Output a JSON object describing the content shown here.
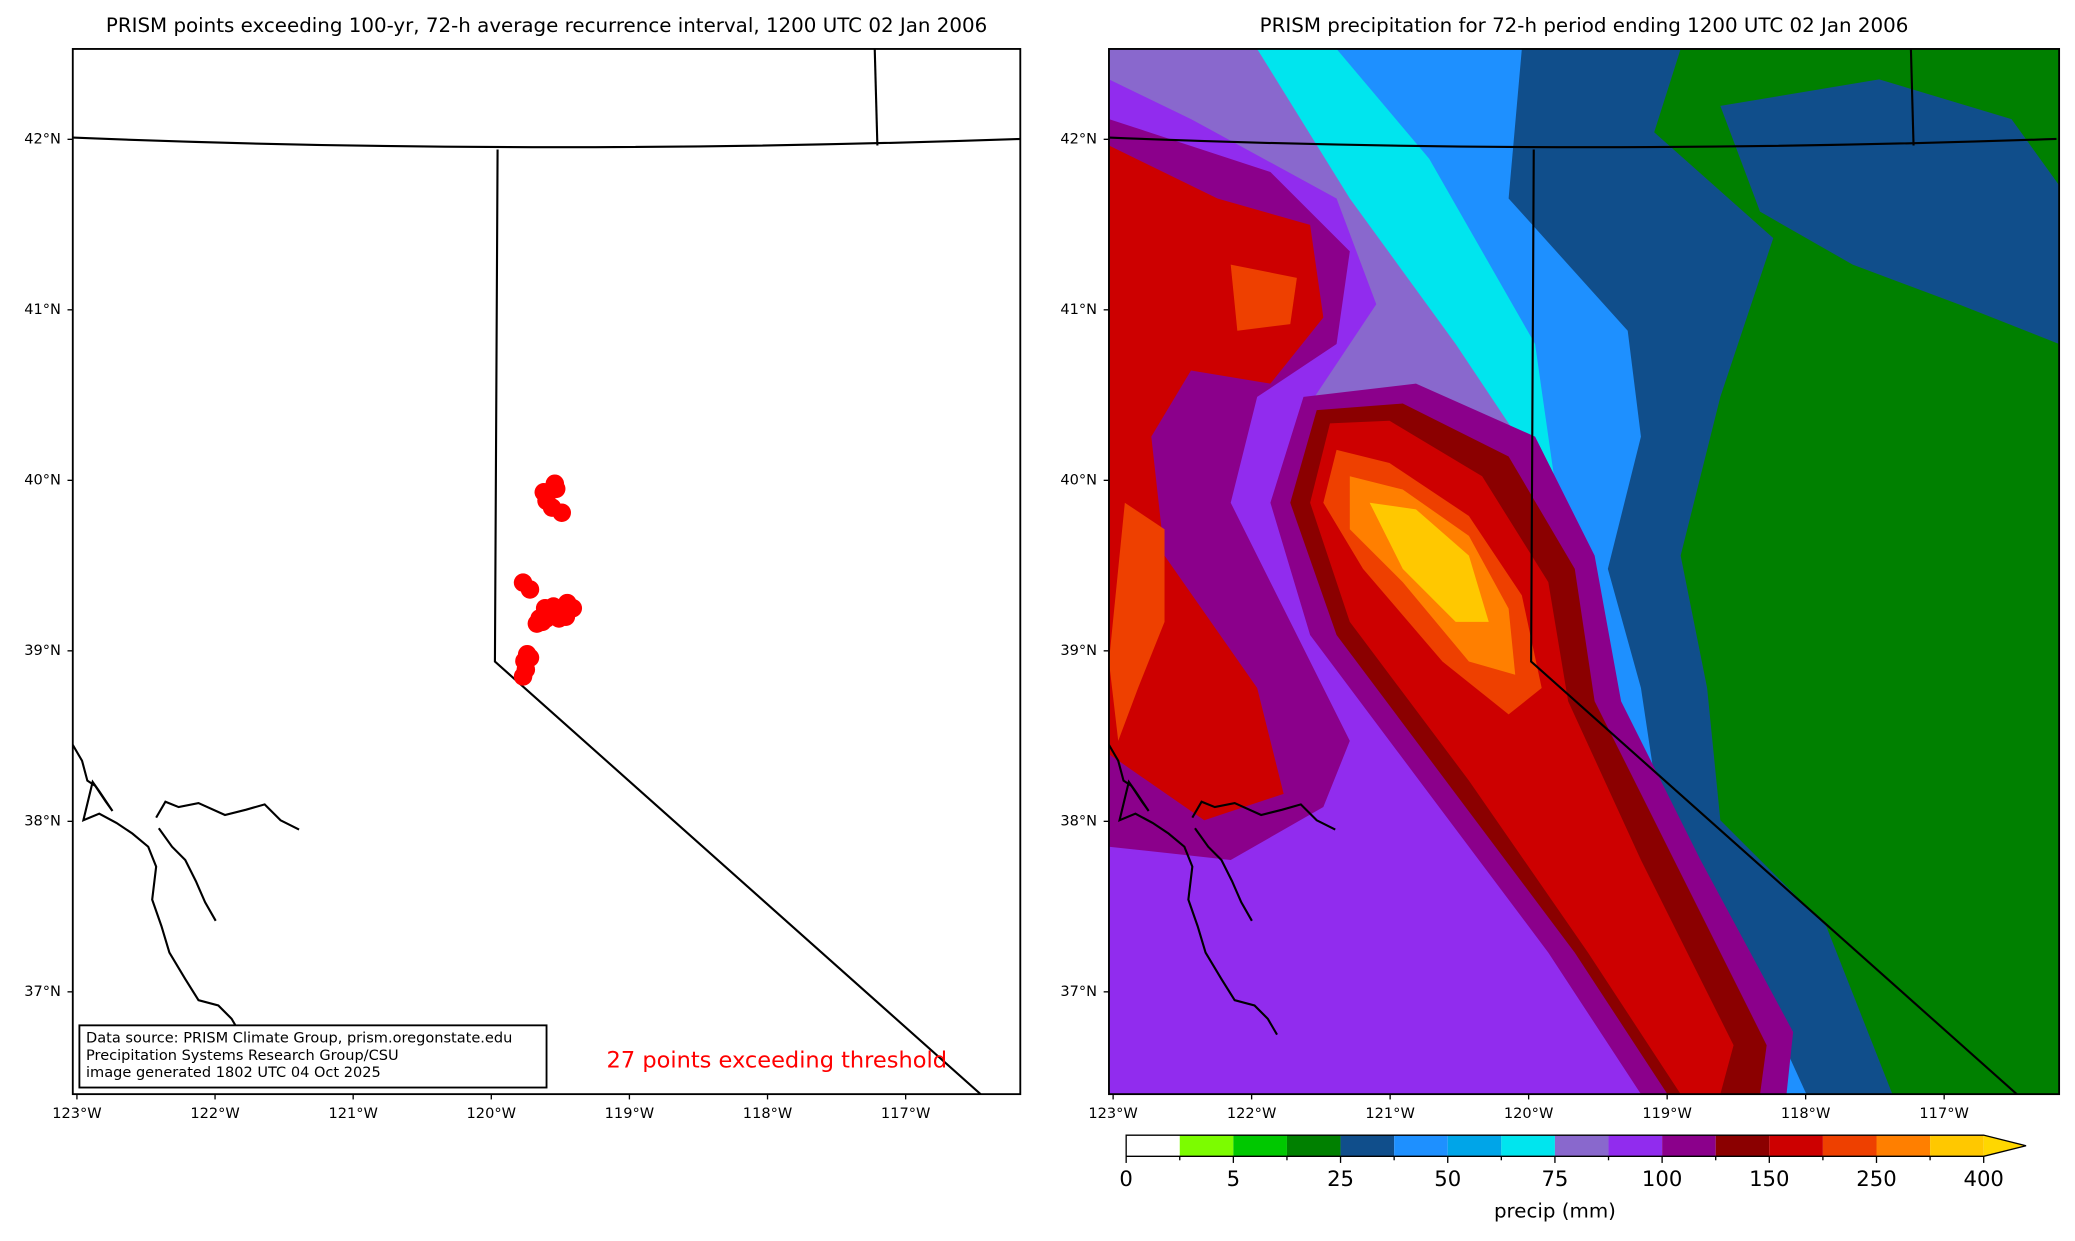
{
  "panels": [
    {
      "title": "PRISM points exceeding 100-yr, 72-h average recurrence interval, 1200 UTC 02 Jan 2006",
      "xlim": [
        -123.03,
        -116.17
      ],
      "ylim": [
        36.4,
        42.53
      ],
      "xticks": [
        {
          "value": -123,
          "label": "123°W"
        },
        {
          "value": -122,
          "label": "122°W"
        },
        {
          "value": -121,
          "label": "121°W"
        },
        {
          "value": -120,
          "label": "120°W"
        },
        {
          "value": -119,
          "label": "119°W"
        },
        {
          "value": -118,
          "label": "118°W"
        },
        {
          "value": -117,
          "label": "117°W"
        }
      ],
      "yticks": [
        {
          "value": 42,
          "label": "42°N"
        },
        {
          "value": 41,
          "label": "41°N"
        },
        {
          "value": 40,
          "label": "40°N"
        },
        {
          "value": 39,
          "label": "39°N"
        },
        {
          "value": 38,
          "label": "38°N"
        },
        {
          "value": 37,
          "label": "37°N"
        }
      ],
      "points": {
        "color": "#ff0000",
        "lon": [
          -119.54,
          -119.62,
          -119.6,
          -119.56,
          -119.49,
          -119.77,
          -119.72,
          -119.44,
          -119.48,
          -119.53,
          -119.58,
          -119.63,
          -119.67,
          -119.6,
          -119.51,
          -119.46,
          -119.41,
          -119.55,
          -119.74,
          -119.76,
          -119.75,
          -119.77,
          -119.72,
          -119.61,
          -119.53,
          -119.65,
          -119.45
        ],
        "lat": [
          39.98,
          39.93,
          39.88,
          39.84,
          39.81,
          39.4,
          39.36,
          39.26,
          39.23,
          39.22,
          39.21,
          39.17,
          39.16,
          39.19,
          39.19,
          39.2,
          39.25,
          39.26,
          38.98,
          38.94,
          38.89,
          38.85,
          38.96,
          39.25,
          39.95,
          39.19,
          39.28
        ]
      },
      "source_lines": [
        "Data source: PRISM Climate Group, prism.oregonstate.edu",
        "Precipitation Systems Research Group/CSU",
        "image generated 1802 UTC 04 Oct 2025"
      ],
      "count_label": "27 points exceeding threshold"
    },
    {
      "title": "PRISM precipitation for 72-h period ending 1200 UTC 02 Jan 2006",
      "xlim": [
        -123.03,
        -116.17
      ],
      "ylim": [
        36.4,
        42.53
      ],
      "xticks": [
        {
          "value": -123,
          "label": "123°W"
        },
        {
          "value": -122,
          "label": "122°W"
        },
        {
          "value": -121,
          "label": "121°W"
        },
        {
          "value": -120,
          "label": "120°W"
        },
        {
          "value": -119,
          "label": "119°W"
        },
        {
          "value": -118,
          "label": "118°W"
        },
        {
          "value": -117,
          "label": "117°W"
        }
      ],
      "yticks": [
        {
          "value": 42,
          "label": "42°N"
        },
        {
          "value": 41,
          "label": "41°N"
        },
        {
          "value": 40,
          "label": "40°N"
        },
        {
          "value": 39,
          "label": "39°N"
        },
        {
          "value": 38,
          "label": "38°N"
        },
        {
          "value": 37,
          "label": "37°N"
        }
      ],
      "colorbar": {
        "label": "precip (mm)",
        "ticks": [
          0,
          5,
          25,
          50,
          75,
          100,
          150,
          250,
          400
        ],
        "colors": [
          "#ffffff",
          "#7cfc00",
          "#00c800",
          "#008000",
          "#104e8b",
          "#1e90ff",
          "#00a5e8",
          "#00e5ee",
          "#8968cd",
          "#912cee",
          "#8b008b",
          "#8b0000",
          "#cd0000",
          "#ee4000",
          "#ff7f00",
          "#ffc800"
        ],
        "extend_color": "#ffd700"
      }
    }
  ]
}
